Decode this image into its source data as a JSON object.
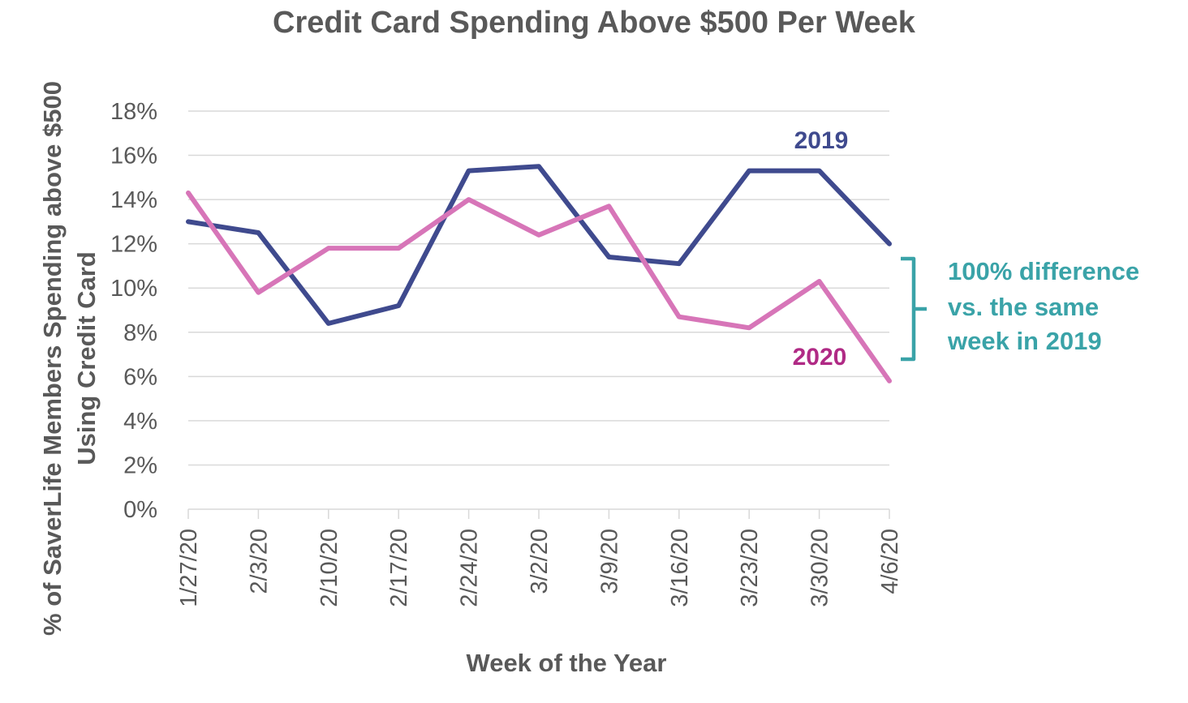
{
  "chart_data": {
    "type": "line",
    "title": "Credit Card Spending Above $500 Per Week",
    "xlabel": "Week of the Year",
    "ylabel_lines": [
      "% of SaverLife Members Spending above $500",
      "Using Credit Card"
    ],
    "categories": [
      "1/27/20",
      "2/3/20",
      "2/10/20",
      "2/17/20",
      "2/24/20",
      "3/2/20",
      "3/9/20",
      "3/16/20",
      "3/23/20",
      "3/30/20",
      "4/6/20"
    ],
    "ylim": [
      0,
      18
    ],
    "yticks": [
      0,
      2,
      4,
      6,
      8,
      10,
      12,
      14,
      16,
      18
    ],
    "ytick_labels": [
      "0%",
      "2%",
      "4%",
      "6%",
      "8%",
      "10%",
      "12%",
      "14%",
      "16%",
      "18%"
    ],
    "grid": true,
    "series": [
      {
        "name": "2019",
        "color": "#3f4a8e",
        "values": [
          13.0,
          12.5,
          8.4,
          9.2,
          15.3,
          15.5,
          11.4,
          11.1,
          15.3,
          15.3,
          12.0
        ]
      },
      {
        "name": "2020",
        "color": "#d775b8",
        "label_color": "#b02a85",
        "values": [
          14.3,
          9.8,
          11.8,
          11.8,
          14.0,
          12.4,
          13.7,
          8.7,
          8.2,
          10.3,
          5.8
        ]
      }
    ],
    "annotation": {
      "lines": [
        "100% difference",
        "vs. the same",
        "week in 2019"
      ],
      "color": "#3aa3a8"
    }
  }
}
